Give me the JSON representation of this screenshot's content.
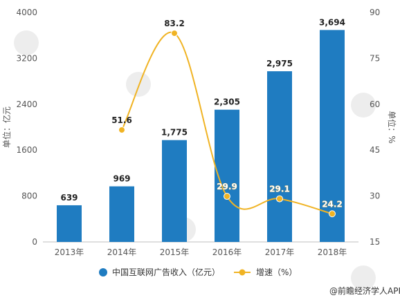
{
  "chart_data": {
    "type": "bar",
    "categories": [
      "2013年",
      "2014年",
      "2015年",
      "2016年",
      "2017年",
      "2018年"
    ],
    "series": [
      {
        "name": "中国互联网广告收入（亿元）",
        "type": "bar",
        "axis": "left",
        "values": [
          639,
          969,
          1775,
          2305,
          2975,
          3694
        ],
        "labels": [
          "639",
          "969",
          "1,775",
          "2,305",
          "2,975",
          "3,694"
        ],
        "color": "#1f7cc1"
      },
      {
        "name": "增速（%）",
        "type": "line",
        "axis": "right",
        "values": [
          null,
          51.6,
          83.2,
          29.9,
          29.1,
          24.2
        ],
        "labels": [
          "",
          "51.6",
          "83.2",
          "29.9",
          "29.1",
          "24.2"
        ],
        "color": "#f0b323"
      }
    ],
    "y_left": {
      "label": "单位：亿元",
      "range": [
        0,
        4000
      ],
      "ticks": [
        "0",
        "800",
        "1600",
        "2400",
        "3200",
        "4000"
      ]
    },
    "y_right": {
      "label": "单位：%",
      "range": [
        15,
        90
      ],
      "ticks": [
        "15",
        "30",
        "45",
        "60",
        "75",
        "90"
      ]
    },
    "legend_position": "bottom"
  },
  "source": "@前瞻经济学人APP"
}
